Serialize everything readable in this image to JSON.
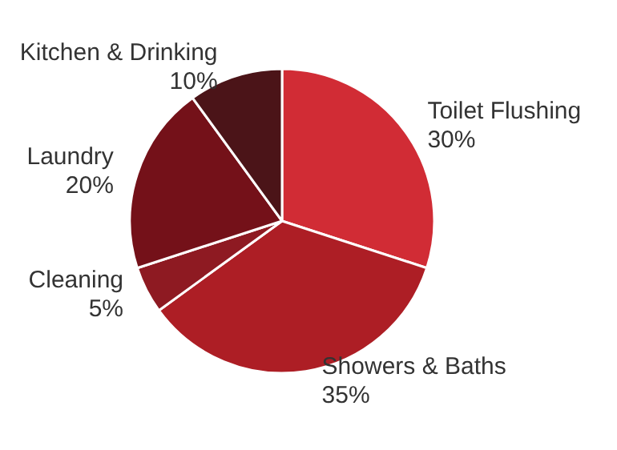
{
  "chart_data": {
    "type": "pie",
    "categories": [
      "Toilet Flushing",
      "Showers & Baths",
      "Cleaning",
      "Laundry",
      "Kitchen & Drinking"
    ],
    "values": [
      30,
      35,
      5,
      20,
      10
    ],
    "value_labels": [
      "30%",
      "35%",
      "5%",
      "20%",
      "10%"
    ],
    "colors": [
      "#d12c35",
      "#ad1e25",
      "#8e1a22",
      "#741119",
      "#4b1418"
    ]
  }
}
